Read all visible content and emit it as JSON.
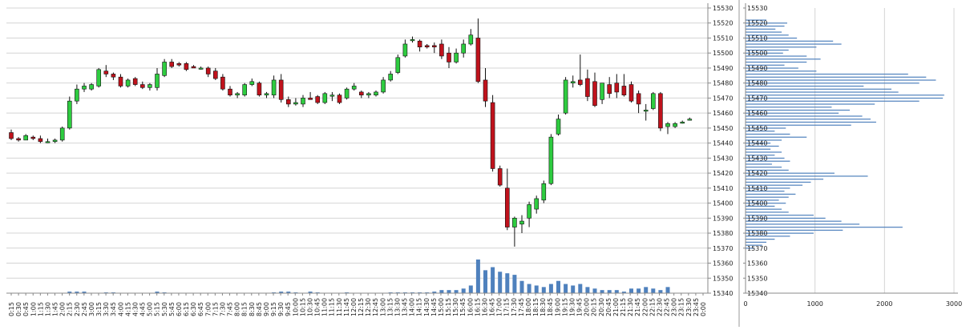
{
  "chart_data": [
    {
      "type": "candlestick",
      "title": "",
      "xlabel": "",
      "ylabel": "",
      "ylim": [
        15340,
        15530
      ],
      "y_ticks": [
        15340,
        15350,
        15360,
        15370,
        15380,
        15390,
        15400,
        15410,
        15420,
        15430,
        15440,
        15450,
        15460,
        15470,
        15480,
        15490,
        15500,
        15510,
        15520,
        15530
      ],
      "x_time_labels": [
        "0:15",
        "0:30",
        "0:45",
        "1:00",
        "1:15",
        "1:30",
        "1:45",
        "2:00",
        "2:15",
        "2:30",
        "2:45",
        "3:00",
        "3:15",
        "3:30",
        "3:45",
        "4:00",
        "4:15",
        "4:30",
        "4:45",
        "5:00",
        "5:15",
        "5:30",
        "5:45",
        "6:00",
        "6:15",
        "6:30",
        "6:45",
        "7:00",
        "7:15",
        "7:30",
        "7:45",
        "8:00",
        "8:15",
        "8:30",
        "8:45",
        "9:00",
        "9:15",
        "9:30",
        "9:45",
        "10:00",
        "10:15",
        "10:30",
        "10:45",
        "11:00",
        "11:15",
        "11:30",
        "11:45",
        "12:00",
        "12:15",
        "12:30",
        "12:45",
        "13:00",
        "13:15",
        "13:30",
        "13:45",
        "14:00",
        "14:15",
        "14:30",
        "14:45",
        "15:00",
        "15:15",
        "15:30",
        "15:45",
        "16:00",
        "16:15",
        "16:30",
        "16:45",
        "17:00",
        "17:15",
        "17:30",
        "17:45",
        "18:00",
        "18:15",
        "18:30",
        "18:45",
        "19:00",
        "19:15",
        "19:30",
        "19:45",
        "20:00",
        "20:15",
        "20:30",
        "20:45",
        "21:00",
        "21:15",
        "21:30",
        "21:45",
        "22:00",
        "22:15",
        "22:30",
        "22:45",
        "23:00",
        "23:15",
        "23:30",
        "23:45",
        "0:00"
      ],
      "grid": true,
      "colors": {
        "up": "#2ecc40",
        "down": "#c0121c",
        "volume": "#4f81bd",
        "grid": "#d4d4d4"
      },
      "candles": [
        {
          "o": 15447,
          "h": 15449,
          "l": 15442,
          "c": 15443
        },
        {
          "o": 15443,
          "h": 15444,
          "l": 15441,
          "c": 15442
        },
        {
          "o": 15442,
          "h": 15446,
          "l": 15442,
          "c": 15445
        },
        {
          "o": 15444,
          "h": 15445,
          "l": 15442,
          "c": 15443
        },
        {
          "o": 15443,
          "h": 15445,
          "l": 15440,
          "c": 15441
        },
        {
          "o": 15441,
          "h": 15443,
          "l": 15440,
          "c": 15441
        },
        {
          "o": 15441,
          "h": 15443,
          "l": 15440,
          "c": 15442
        },
        {
          "o": 15442,
          "h": 15451,
          "l": 15441,
          "c": 15450
        },
        {
          "o": 15450,
          "h": 15471,
          "l": 15449,
          "c": 15468
        },
        {
          "o": 15468,
          "h": 15479,
          "l": 15466,
          "c": 15476
        },
        {
          "o": 15476,
          "h": 15480,
          "l": 15474,
          "c": 15478
        },
        {
          "o": 15476,
          "h": 15480,
          "l": 15475,
          "c": 15479
        },
        {
          "o": 15478,
          "h": 15490,
          "l": 15477,
          "c": 15489
        },
        {
          "o": 15488,
          "h": 15492,
          "l": 15484,
          "c": 15486
        },
        {
          "o": 15486,
          "h": 15487,
          "l": 15482,
          "c": 15484
        },
        {
          "o": 15484,
          "h": 15486,
          "l": 15477,
          "c": 15478
        },
        {
          "o": 15478,
          "h": 15483,
          "l": 15477,
          "c": 15482
        },
        {
          "o": 15483,
          "h": 15484,
          "l": 15478,
          "c": 15479
        },
        {
          "o": 15479,
          "h": 15481,
          "l": 15476,
          "c": 15477
        },
        {
          "o": 15477,
          "h": 15480,
          "l": 15475,
          "c": 15479
        },
        {
          "o": 15477,
          "h": 15490,
          "l": 15475,
          "c": 15486
        },
        {
          "o": 15485,
          "h": 15496,
          "l": 15484,
          "c": 15494
        },
        {
          "o": 15494,
          "h": 15496,
          "l": 15490,
          "c": 15491
        },
        {
          "o": 15493,
          "h": 15494,
          "l": 15491,
          "c": 15492
        },
        {
          "o": 15493,
          "h": 15494,
          "l": 15488,
          "c": 15489
        },
        {
          "o": 15491,
          "h": 15492,
          "l": 15490,
          "c": 15490
        },
        {
          "o": 15490,
          "h": 15491,
          "l": 15489,
          "c": 15490
        },
        {
          "o": 15490,
          "h": 15491,
          "l": 15484,
          "c": 15486
        },
        {
          "o": 15488,
          "h": 15490,
          "l": 15482,
          "c": 15483
        },
        {
          "o": 15484,
          "h": 15486,
          "l": 15475,
          "c": 15476
        },
        {
          "o": 15476,
          "h": 15478,
          "l": 15471,
          "c": 15472
        },
        {
          "o": 15472,
          "h": 15474,
          "l": 15470,
          "c": 15473
        },
        {
          "o": 15472,
          "h": 15480,
          "l": 15471,
          "c": 15479
        },
        {
          "o": 15479,
          "h": 15483,
          "l": 15478,
          "c": 15481
        },
        {
          "o": 15480,
          "h": 15481,
          "l": 15471,
          "c": 15472
        },
        {
          "o": 15472,
          "h": 15474,
          "l": 15470,
          "c": 15473
        },
        {
          "o": 15472,
          "h": 15485,
          "l": 15470,
          "c": 15482
        },
        {
          "o": 15482,
          "h": 15486,
          "l": 15467,
          "c": 15469
        },
        {
          "o": 15469,
          "h": 15471,
          "l": 15464,
          "c": 15466
        },
        {
          "o": 15466,
          "h": 15470,
          "l": 15465,
          "c": 15467
        },
        {
          "o": 15466,
          "h": 15472,
          "l": 15464,
          "c": 15470
        },
        {
          "o": 15470,
          "h": 15474,
          "l": 15469,
          "c": 15469
        },
        {
          "o": 15471,
          "h": 15472,
          "l": 15466,
          "c": 15467
        },
        {
          "o": 15467,
          "h": 15474,
          "l": 15466,
          "c": 15473
        },
        {
          "o": 15472,
          "h": 15474,
          "l": 15468,
          "c": 15472
        },
        {
          "o": 15472,
          "h": 15473,
          "l": 15466,
          "c": 15467
        },
        {
          "o": 15470,
          "h": 15477,
          "l": 15469,
          "c": 15476
        },
        {
          "o": 15476,
          "h": 15480,
          "l": 15475,
          "c": 15478
        },
        {
          "o": 15474,
          "h": 15475,
          "l": 15470,
          "c": 15472
        },
        {
          "o": 15472,
          "h": 15474,
          "l": 15470,
          "c": 15473
        },
        {
          "o": 15472,
          "h": 15475,
          "l": 15471,
          "c": 15474
        },
        {
          "o": 15474,
          "h": 15484,
          "l": 15473,
          "c": 15482
        },
        {
          "o": 15482,
          "h": 15488,
          "l": 15481,
          "c": 15486
        },
        {
          "o": 15487,
          "h": 15499,
          "l": 15486,
          "c": 15497
        },
        {
          "o": 15498,
          "h": 15509,
          "l": 15497,
          "c": 15506
        },
        {
          "o": 15509,
          "h": 15511,
          "l": 15507,
          "c": 15509
        },
        {
          "o": 15508,
          "h": 15509,
          "l": 15501,
          "c": 15504
        },
        {
          "o": 15505,
          "h": 15506,
          "l": 15503,
          "c": 15504
        },
        {
          "o": 15505,
          "h": 15507,
          "l": 15500,
          "c": 15504
        },
        {
          "o": 15506,
          "h": 15509,
          "l": 15496,
          "c": 15498
        },
        {
          "o": 15500,
          "h": 15504,
          "l": 15490,
          "c": 15494
        },
        {
          "o": 15494,
          "h": 15503,
          "l": 15493,
          "c": 15500
        },
        {
          "o": 15500,
          "h": 15509,
          "l": 15497,
          "c": 15506
        },
        {
          "o": 15506,
          "h": 15516,
          "l": 15505,
          "c": 15512
        },
        {
          "o": 15510,
          "h": 15523,
          "l": 15480,
          "c": 15481
        },
        {
          "o": 15482,
          "h": 15490,
          "l": 15464,
          "c": 15468
        },
        {
          "o": 15467,
          "h": 15472,
          "l": 15421,
          "c": 15423
        },
        {
          "o": 15423,
          "h": 15425,
          "l": 15411,
          "c": 15412
        },
        {
          "o": 15410,
          "h": 15423,
          "l": 15382,
          "c": 15384
        },
        {
          "o": 15384,
          "h": 15391,
          "l": 15371,
          "c": 15390
        },
        {
          "o": 15386,
          "h": 15392,
          "l": 15380,
          "c": 15388
        },
        {
          "o": 15390,
          "h": 15401,
          "l": 15384,
          "c": 15399
        },
        {
          "o": 15396,
          "h": 15405,
          "l": 15393,
          "c": 15403
        },
        {
          "o": 15402,
          "h": 15415,
          "l": 15400,
          "c": 15413
        },
        {
          "o": 15413,
          "h": 15446,
          "l": 15412,
          "c": 15444
        },
        {
          "o": 15446,
          "h": 15459,
          "l": 15445,
          "c": 15456
        },
        {
          "o": 15460,
          "h": 15484,
          "l": 15459,
          "c": 15482
        },
        {
          "o": 15480,
          "h": 15485,
          "l": 15477,
          "c": 15481
        },
        {
          "o": 15482,
          "h": 15499,
          "l": 15478,
          "c": 15479
        },
        {
          "o": 15483,
          "h": 15489,
          "l": 15468,
          "c": 15471
        },
        {
          "o": 15481,
          "h": 15487,
          "l": 15464,
          "c": 15465
        },
        {
          "o": 15469,
          "h": 15480,
          "l": 15466,
          "c": 15480
        },
        {
          "o": 15479,
          "h": 15484,
          "l": 15470,
          "c": 15473
        },
        {
          "o": 15480,
          "h": 15486,
          "l": 15470,
          "c": 15474
        },
        {
          "o": 15478,
          "h": 15486,
          "l": 15471,
          "c": 15472
        },
        {
          "o": 15479,
          "h": 15481,
          "l": 15467,
          "c": 15468
        },
        {
          "o": 15473,
          "h": 15475,
          "l": 15460,
          "c": 15466
        },
        {
          "o": 15462,
          "h": 15466,
          "l": 15455,
          "c": 15462
        },
        {
          "o": 15463,
          "h": 15474,
          "l": 15462,
          "c": 15473
        },
        {
          "o": 15473,
          "h": 15474,
          "l": 15448,
          "c": 15450
        },
        {
          "o": 15451,
          "h": 15454,
          "l": 15446,
          "c": 15453
        },
        {
          "o": 15451,
          "h": 15454,
          "l": 15450,
          "c": 15453
        },
        {
          "o": 15454,
          "h": 15455,
          "l": 15453,
          "c": 15454
        },
        {
          "o": 15456,
          "h": 15457,
          "l": 15455,
          "c": 15456
        }
      ],
      "volume": [
        0,
        0,
        0,
        0,
        0,
        0,
        0,
        0,
        1,
        1,
        1,
        0,
        0,
        0.5,
        0.5,
        0,
        0,
        0,
        0,
        0,
        1,
        0.5,
        0,
        0,
        0,
        0,
        0,
        0,
        0,
        0,
        0,
        0,
        0,
        0,
        0,
        0,
        0.5,
        1,
        1,
        0.5,
        0,
        1,
        0.5,
        0,
        0,
        0,
        0.5,
        0,
        0,
        0,
        0,
        0,
        0.5,
        0.5,
        0.5,
        0.5,
        0.5,
        0.5,
        1,
        2,
        2,
        2,
        3,
        5,
        22,
        15,
        17,
        14,
        13,
        12,
        8,
        6,
        5,
        4,
        6,
        8,
        6,
        5,
        6,
        4,
        3,
        2,
        2,
        2,
        1,
        3,
        3,
        4,
        3,
        2,
        4,
        0,
        0,
        0,
        0,
        0
      ],
      "volume_hidden_max": 22
    },
    {
      "type": "horizontal_bar",
      "title": "",
      "xlabel": "",
      "ylabel": "",
      "xlim": [
        0,
        3000
      ],
      "x_ticks": [
        0,
        1000,
        2000,
        3000
      ],
      "y_ticks": [
        15340,
        15350,
        15360,
        15370,
        15380,
        15390,
        15400,
        15410,
        15420,
        15430,
        15440,
        15450,
        15460,
        15470,
        15480,
        15490,
        15500,
        15510,
        15520,
        15530
      ],
      "price_profile": [
        {
          "p": 15370,
          "v": 120
        },
        {
          "p": 15372,
          "v": 240
        },
        {
          "p": 15374,
          "v": 300
        },
        {
          "p": 15376,
          "v": 420
        },
        {
          "p": 15378,
          "v": 640
        },
        {
          "p": 15380,
          "v": 980
        },
        {
          "p": 15382,
          "v": 1400
        },
        {
          "p": 15384,
          "v": 2260
        },
        {
          "p": 15386,
          "v": 1640
        },
        {
          "p": 15388,
          "v": 1380
        },
        {
          "p": 15390,
          "v": 1150
        },
        {
          "p": 15392,
          "v": 980
        },
        {
          "p": 15394,
          "v": 620
        },
        {
          "p": 15396,
          "v": 520
        },
        {
          "p": 15398,
          "v": 420
        },
        {
          "p": 15400,
          "v": 580
        },
        {
          "p": 15402,
          "v": 480
        },
        {
          "p": 15404,
          "v": 620
        },
        {
          "p": 15406,
          "v": 720
        },
        {
          "p": 15408,
          "v": 560
        },
        {
          "p": 15410,
          "v": 640
        },
        {
          "p": 15412,
          "v": 820
        },
        {
          "p": 15414,
          "v": 940
        },
        {
          "p": 15416,
          "v": 1120
        },
        {
          "p": 15418,
          "v": 1760
        },
        {
          "p": 15420,
          "v": 1280
        },
        {
          "p": 15422,
          "v": 620
        },
        {
          "p": 15424,
          "v": 520
        },
        {
          "p": 15426,
          "v": 380
        },
        {
          "p": 15428,
          "v": 640
        },
        {
          "p": 15430,
          "v": 560
        },
        {
          "p": 15432,
          "v": 420
        },
        {
          "p": 15434,
          "v": 520
        },
        {
          "p": 15436,
          "v": 360
        },
        {
          "p": 15438,
          "v": 480
        },
        {
          "p": 15440,
          "v": 360
        },
        {
          "p": 15442,
          "v": 520
        },
        {
          "p": 15444,
          "v": 880
        },
        {
          "p": 15446,
          "v": 640
        },
        {
          "p": 15448,
          "v": 420
        },
        {
          "p": 15450,
          "v": 580
        },
        {
          "p": 15452,
          "v": 1520
        },
        {
          "p": 15454,
          "v": 1880
        },
        {
          "p": 15456,
          "v": 1800
        },
        {
          "p": 15458,
          "v": 1680
        },
        {
          "p": 15460,
          "v": 1340
        },
        {
          "p": 15462,
          "v": 1500
        },
        {
          "p": 15464,
          "v": 1240
        },
        {
          "p": 15466,
          "v": 1860
        },
        {
          "p": 15468,
          "v": 2500
        },
        {
          "p": 15470,
          "v": 2840
        },
        {
          "p": 15472,
          "v": 2860
        },
        {
          "p": 15474,
          "v": 2200
        },
        {
          "p": 15476,
          "v": 2100
        },
        {
          "p": 15478,
          "v": 1700
        },
        {
          "p": 15480,
          "v": 2500
        },
        {
          "p": 15482,
          "v": 2740
        },
        {
          "p": 15484,
          "v": 2600
        },
        {
          "p": 15486,
          "v": 2340
        },
        {
          "p": 15488,
          "v": 1020
        },
        {
          "p": 15490,
          "v": 760
        },
        {
          "p": 15492,
          "v": 560
        },
        {
          "p": 15494,
          "v": 880
        },
        {
          "p": 15496,
          "v": 1080
        },
        {
          "p": 15498,
          "v": 880
        },
        {
          "p": 15500,
          "v": 540
        },
        {
          "p": 15502,
          "v": 620
        },
        {
          "p": 15504,
          "v": 1020
        },
        {
          "p": 15506,
          "v": 1380
        },
        {
          "p": 15508,
          "v": 1260
        },
        {
          "p": 15510,
          "v": 740
        },
        {
          "p": 15512,
          "v": 620
        },
        {
          "p": 15514,
          "v": 520
        },
        {
          "p": 15516,
          "v": 430
        },
        {
          "p": 15518,
          "v": 560
        },
        {
          "p": 15520,
          "v": 600
        },
        {
          "p": 15522,
          "v": 300
        }
      ],
      "colors": {
        "bar": "#4f81bd",
        "grid": "#d4d4d4"
      }
    }
  ]
}
